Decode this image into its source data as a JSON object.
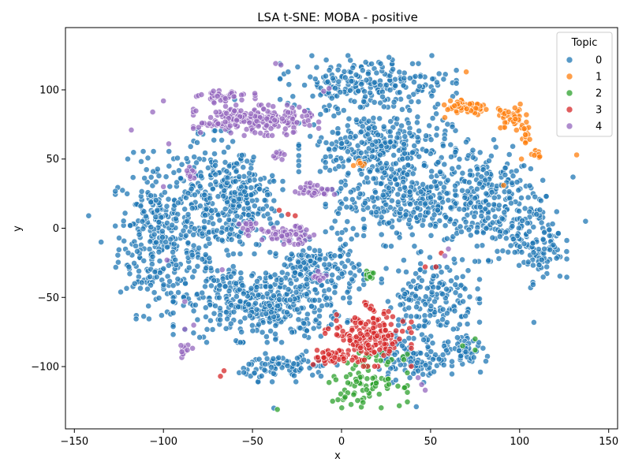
{
  "chart_data": {
    "type": "scatter",
    "title": "LSA t-SNE: MOBA - positive",
    "xlabel": "x",
    "ylabel": "y",
    "xlim": [
      -155,
      155
    ],
    "ylim": [
      -145,
      145
    ],
    "xticks": [
      -150,
      -100,
      -50,
      0,
      50,
      100,
      150
    ],
    "yticks": [
      -100,
      -50,
      0,
      50,
      100
    ],
    "grid": false,
    "legend": {
      "title": "Topic",
      "placement": "top-right"
    },
    "series": [
      {
        "name": "0",
        "color": "#1f77b4",
        "clusters": [
          {
            "cx": -105,
            "cy": -5,
            "rx": 20,
            "ry": 55,
            "n": 260
          },
          {
            "cx": -75,
            "cy": 10,
            "rx": 25,
            "ry": 55,
            "n": 260
          },
          {
            "cx": -55,
            "cy": 20,
            "rx": 20,
            "ry": 35,
            "n": 180
          },
          {
            "cx": -45,
            "cy": -55,
            "rx": 45,
            "ry": 25,
            "n": 380
          },
          {
            "cx": -15,
            "cy": -30,
            "rx": 25,
            "ry": 20,
            "n": 160
          },
          {
            "cx": 20,
            "cy": 60,
            "rx": 40,
            "ry": 25,
            "n": 280
          },
          {
            "cx": 35,
            "cy": 20,
            "rx": 40,
            "ry": 30,
            "n": 320
          },
          {
            "cx": 15,
            "cy": 105,
            "rx": 45,
            "ry": 18,
            "n": 220
          },
          {
            "cx": 80,
            "cy": 20,
            "rx": 30,
            "ry": 40,
            "n": 260
          },
          {
            "cx": 110,
            "cy": -10,
            "rx": 15,
            "ry": 30,
            "n": 120
          },
          {
            "cx": 50,
            "cy": -50,
            "rx": 25,
            "ry": 30,
            "n": 180
          },
          {
            "cx": 40,
            "cy": -95,
            "rx": 20,
            "ry": 15,
            "n": 100
          },
          {
            "cx": -30,
            "cy": -100,
            "rx": 25,
            "ry": 10,
            "n": 90
          },
          {
            "cx": 70,
            "cy": -90,
            "rx": 15,
            "ry": 10,
            "n": 50
          }
        ],
        "points": [
          [
            -142,
            9
          ],
          [
            -135,
            -10
          ],
          [
            -120,
            50
          ],
          [
            -101,
            -63
          ],
          [
            -96,
            -8
          ],
          [
            137,
            5
          ],
          [
            130,
            37
          ],
          [
            108,
            -68
          ],
          [
            78,
            -104
          ],
          [
            42,
            -129
          ],
          [
            -38,
            -130
          ],
          [
            -60,
            93
          ],
          [
            -30,
            113
          ],
          [
            -66,
            55
          ],
          [
            -38,
            34
          ],
          [
            -21,
            -3
          ],
          [
            -12,
            41
          ]
        ]
      },
      {
        "name": "1",
        "color": "#ff7f0e",
        "clusters": [
          {
            "cx": 70,
            "cy": 87,
            "rx": 14,
            "ry": 5,
            "n": 60
          },
          {
            "cx": 95,
            "cy": 80,
            "rx": 8,
            "ry": 10,
            "n": 40
          },
          {
            "cx": 103,
            "cy": 68,
            "rx": 3,
            "ry": 6,
            "n": 15
          },
          {
            "cx": 110,
            "cy": 54,
            "rx": 3,
            "ry": 4,
            "n": 10
          },
          {
            "cx": 10,
            "cy": 47,
            "rx": 3,
            "ry": 3,
            "n": 6
          }
        ],
        "points": [
          [
            70,
            113
          ],
          [
            58,
            80
          ],
          [
            132,
            53
          ],
          [
            101,
            50
          ],
          [
            91,
            31
          ]
        ]
      },
      {
        "name": "2",
        "color": "#2ca02c",
        "clusters": [
          {
            "cx": 15,
            "cy": -32,
            "rx": 5,
            "ry": 5,
            "n": 12
          },
          {
            "cx": 15,
            "cy": -110,
            "rx": 20,
            "ry": 18,
            "n": 85
          }
        ],
        "points": [
          [
            -36,
            -131
          ],
          [
            75,
            -80
          ],
          [
            68,
            -85
          ],
          [
            75,
            -88
          ],
          [
            35,
            -95
          ],
          [
            -2,
            -124
          ],
          [
            2,
            -122
          ],
          [
            -5,
            -125
          ]
        ]
      },
      {
        "name": "3",
        "color": "#d62728",
        "clusters": [
          {
            "cx": 15,
            "cy": -80,
            "rx": 22,
            "ry": 18,
            "n": 180
          },
          {
            "cx": -5,
            "cy": -93,
            "rx": 10,
            "ry": 5,
            "n": 40
          },
          {
            "cx": 15,
            "cy": -55,
            "rx": 3,
            "ry": 7,
            "n": 8
          }
        ],
        "points": [
          [
            -35,
            13
          ],
          [
            -30,
            10
          ],
          [
            -26,
            9
          ],
          [
            -68,
            -107
          ],
          [
            -66,
            -103
          ],
          [
            47,
            -28
          ],
          [
            53,
            -28
          ],
          [
            56,
            -18
          ]
        ]
      },
      {
        "name": "4",
        "color": "#9467bd",
        "clusters": [
          {
            "cx": -48,
            "cy": 78,
            "rx": 32,
            "ry": 10,
            "n": 220
          },
          {
            "cx": -65,
            "cy": 95,
            "rx": 15,
            "ry": 4,
            "n": 40
          },
          {
            "cx": -30,
            "cy": -5,
            "rx": 14,
            "ry": 6,
            "n": 70
          },
          {
            "cx": -15,
            "cy": 28,
            "rx": 10,
            "ry": 5,
            "n": 40
          },
          {
            "cx": -13,
            "cy": -35,
            "rx": 4,
            "ry": 4,
            "n": 12
          },
          {
            "cx": -52,
            "cy": 0,
            "rx": 5,
            "ry": 5,
            "n": 15
          },
          {
            "cx": -87,
            "cy": -88,
            "rx": 4,
            "ry": 5,
            "n": 12
          },
          {
            "cx": -85,
            "cy": 40,
            "rx": 3,
            "ry": 6,
            "n": 10
          },
          {
            "cx": -35,
            "cy": 53,
            "rx": 5,
            "ry": 3,
            "n": 10
          }
        ],
        "points": [
          [
            -37,
            119
          ],
          [
            -34,
            118
          ],
          [
            -10,
            99
          ],
          [
            -7,
            101
          ],
          [
            -118,
            71
          ],
          [
            -100,
            92
          ],
          [
            -106,
            84
          ],
          [
            -100,
            30
          ],
          [
            -97,
            61
          ],
          [
            -88,
            -53
          ],
          [
            -83,
            -70
          ],
          [
            -88,
            -73
          ],
          [
            -98,
            -23
          ],
          [
            -67,
            -30
          ],
          [
            45,
            -113
          ],
          [
            47,
            -117
          ],
          [
            43,
            -108
          ],
          [
            58,
            -20
          ],
          [
            60,
            -15
          ]
        ]
      }
    ]
  }
}
